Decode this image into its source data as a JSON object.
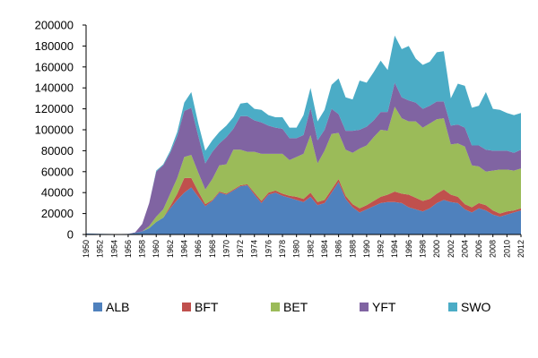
{
  "chart_data": {
    "type": "area",
    "stacked": true,
    "title": "",
    "xlabel": "",
    "ylabel": "",
    "ylim": [
      0,
      200000
    ],
    "xlim": [
      1950,
      2012
    ],
    "y_ticks": [
      0,
      20000,
      40000,
      60000,
      80000,
      100000,
      120000,
      140000,
      160000,
      180000,
      200000
    ],
    "x_tick_labels": [
      "1950",
      "1952",
      "1954",
      "1956",
      "1958",
      "1960",
      "1962",
      "1964",
      "1966",
      "1968",
      "1970",
      "1972",
      "1974",
      "1976",
      "1978",
      "1980",
      "1982",
      "1984",
      "1986",
      "1988",
      "1990",
      "1992",
      "1994",
      "1996",
      "1998",
      "2000",
      "2002",
      "2004",
      "2006",
      "2008",
      "2010",
      "2012"
    ],
    "grid": false,
    "legend_position": "bottom",
    "x": [
      1950,
      1951,
      1952,
      1953,
      1954,
      1955,
      1956,
      1957,
      1958,
      1959,
      1960,
      1961,
      1962,
      1963,
      1964,
      1965,
      1966,
      1967,
      1968,
      1969,
      1970,
      1971,
      1972,
      1973,
      1974,
      1975,
      1976,
      1977,
      1978,
      1979,
      1980,
      1981,
      1982,
      1983,
      1984,
      1985,
      1986,
      1987,
      1988,
      1989,
      1990,
      1991,
      1992,
      1993,
      1994,
      1995,
      1996,
      1997,
      1998,
      1999,
      2000,
      2001,
      2002,
      2003,
      2004,
      2005,
      2006,
      2007,
      2008,
      2009,
      2010,
      2011,
      2012
    ],
    "series": [
      {
        "name": "ALB",
        "color": "#4F81BD",
        "values": [
          1000,
          800,
          600,
          500,
          400,
          400,
          500,
          1500,
          3000,
          6000,
          12000,
          16000,
          25000,
          33000,
          40000,
          45000,
          36000,
          27000,
          32000,
          40000,
          38000,
          42000,
          46000,
          47000,
          38000,
          30000,
          38000,
          40000,
          37000,
          35000,
          33000,
          31000,
          36000,
          28000,
          30000,
          40000,
          50000,
          34000,
          26000,
          21000,
          24000,
          27000,
          30000,
          31000,
          31000,
          30000,
          26000,
          24000,
          22000,
          25000,
          30000,
          33000,
          31000,
          30000,
          24000,
          21000,
          25000,
          23000,
          19000,
          17000,
          19000,
          21000,
          23000
        ]
      },
      {
        "name": "BFT",
        "color": "#C0504D",
        "values": [
          0,
          0,
          0,
          0,
          0,
          0,
          0,
          0,
          0,
          0,
          0,
          0,
          2000,
          6000,
          14000,
          9000,
          5000,
          2000,
          1000,
          1000,
          1000,
          1000,
          1000,
          1000,
          2000,
          2000,
          2000,
          2000,
          2000,
          2000,
          3000,
          3000,
          4000,
          3000,
          3000,
          3000,
          3000,
          3000,
          3000,
          4000,
          4000,
          5000,
          6000,
          7000,
          10000,
          9000,
          12000,
          11000,
          10000,
          9000,
          9000,
          10000,
          7000,
          6000,
          5000,
          5000,
          5000,
          5000,
          4000,
          3000,
          3000,
          2000,
          2000
        ]
      },
      {
        "name": "BET",
        "color": "#9BBB59",
        "values": [
          0,
          0,
          0,
          0,
          0,
          0,
          0,
          0,
          0,
          2000,
          5000,
          8000,
          12000,
          15000,
          20000,
          22000,
          18000,
          14000,
          20000,
          25000,
          28000,
          38000,
          34000,
          31000,
          39000,
          45000,
          37000,
          35000,
          38000,
          34000,
          38000,
          43000,
          55000,
          37000,
          47000,
          53000,
          44000,
          44000,
          49000,
          57000,
          57000,
          61000,
          64000,
          61000,
          81000,
          72000,
          70000,
          73000,
          70000,
          72000,
          71000,
          68000,
          48000,
          51000,
          55000,
          40000,
          35000,
          32000,
          38000,
          42000,
          40000,
          38000,
          38000
        ]
      },
      {
        "name": "YFT",
        "color": "#8064A2",
        "values": [
          0,
          0,
          0,
          0,
          0,
          0,
          0,
          500,
          7000,
          22000,
          43000,
          42000,
          39000,
          40000,
          44000,
          45000,
          35000,
          25000,
          26000,
          21000,
          26000,
          20000,
          32000,
          34000,
          30000,
          30000,
          27000,
          25000,
          24000,
          21000,
          18000,
          18000,
          26000,
          22000,
          20000,
          24000,
          18000,
          18000,
          21000,
          18000,
          18000,
          16000,
          17000,
          18000,
          23000,
          20000,
          20000,
          18000,
          18000,
          17000,
          17000,
          16000,
          18000,
          18000,
          18000,
          19000,
          20000,
          21000,
          19000,
          18000,
          18000,
          17000,
          18000
        ]
      },
      {
        "name": "SWO",
        "color": "#4BACC6",
        "values": [
          0,
          0,
          0,
          0,
          0,
          0,
          0,
          0,
          0,
          0,
          1000,
          1000,
          2000,
          4000,
          8000,
          15000,
          12000,
          12000,
          11000,
          11000,
          11000,
          11000,
          12000,
          13000,
          11000,
          12000,
          10000,
          10000,
          11000,
          10000,
          10000,
          19000,
          19000,
          18000,
          19000,
          23000,
          34000,
          32000,
          30000,
          47000,
          42000,
          46000,
          49000,
          40000,
          45000,
          46000,
          52000,
          42000,
          42000,
          42000,
          47000,
          48000,
          26000,
          39000,
          40000,
          36000,
          38000,
          55000,
          40000,
          39000,
          36000,
          36000,
          35000
        ]
      }
    ]
  }
}
